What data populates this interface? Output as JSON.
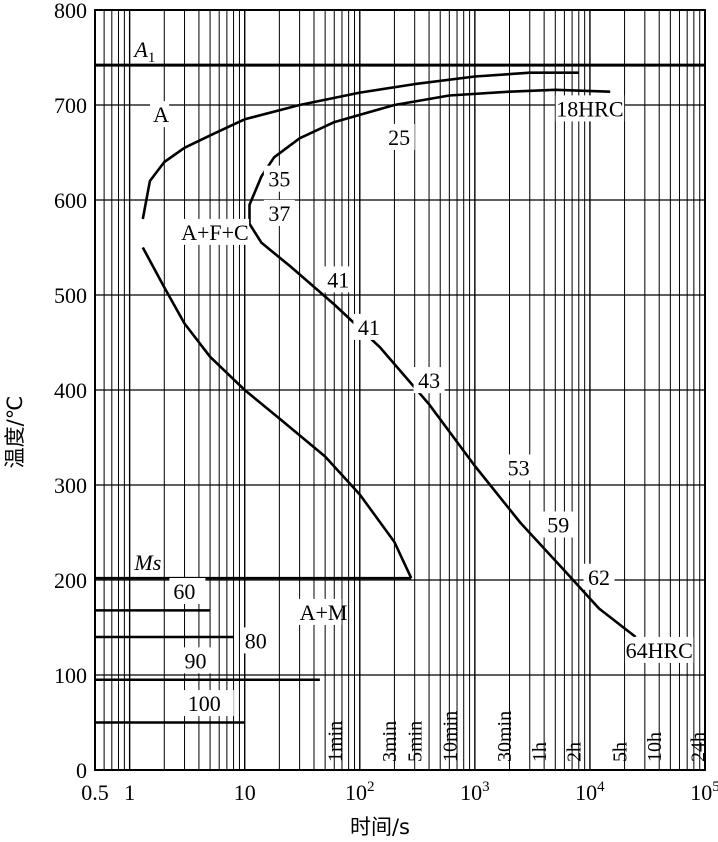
{
  "chart_data": {
    "type": "line",
    "title": "",
    "xlabel": "时间/s",
    "ylabel": "温度/℃",
    "x_scale": "log",
    "xlim": [
      0.5,
      100000
    ],
    "ylim": [
      0,
      800
    ],
    "grid": true,
    "y_ticks": [
      0,
      100,
      200,
      300,
      400,
      500,
      600,
      700,
      800
    ],
    "x_ticks": [
      {
        "value": 0.5,
        "label": "0.5"
      },
      {
        "value": 1,
        "label": "1"
      },
      {
        "value": 10,
        "label": "10"
      },
      {
        "value": 100,
        "label": "10",
        "exp": "2"
      },
      {
        "value": 1000,
        "label": "10",
        "exp": "3"
      },
      {
        "value": 10000,
        "label": "10",
        "exp": "4"
      },
      {
        "value": 100000,
        "label": "10",
        "exp": "5"
      }
    ],
    "time_marks": [
      {
        "value": 60,
        "label": "1min"
      },
      {
        "value": 180,
        "label": "3min"
      },
      {
        "value": 300,
        "label": "5min"
      },
      {
        "value": 600,
        "label": "10min"
      },
      {
        "value": 1800,
        "label": "30min"
      },
      {
        "value": 3600,
        "label": "1h"
      },
      {
        "value": 7200,
        "label": "2h"
      },
      {
        "value": 18000,
        "label": "5h"
      },
      {
        "value": 36000,
        "label": "10h"
      },
      {
        "value": 86400,
        "label": "24h"
      }
    ],
    "a1": {
      "label": "A",
      "sub": "1",
      "y": 742
    },
    "ms": {
      "label": "Ms",
      "y": 202,
      "x_end": 280
    },
    "curves": [
      {
        "id": "ferrite-pearlite-start",
        "points": [
          [
            1.3,
            580
          ],
          [
            1.5,
            620
          ],
          [
            2,
            640
          ],
          [
            3,
            655
          ],
          [
            5,
            668
          ],
          [
            10,
            685
          ],
          [
            30,
            700
          ],
          [
            100,
            713
          ],
          [
            300,
            722
          ],
          [
            1000,
            730
          ],
          [
            3000,
            734
          ],
          [
            8000,
            734
          ]
        ]
      },
      {
        "id": "pearlite-finish",
        "points": [
          [
            15000,
            714
          ],
          [
            5000,
            716
          ],
          [
            2000,
            714
          ],
          [
            600,
            710
          ],
          [
            200,
            700
          ],
          [
            60,
            682
          ],
          [
            30,
            665
          ],
          [
            18,
            645
          ],
          [
            14,
            625
          ],
          [
            11,
            595
          ],
          [
            11,
            575
          ],
          [
            14,
            555
          ],
          [
            25,
            530
          ],
          [
            60,
            490
          ],
          [
            150,
            445
          ],
          [
            400,
            385
          ],
          [
            1000,
            320
          ],
          [
            2500,
            260
          ],
          [
            6000,
            210
          ],
          [
            12000,
            170
          ],
          [
            25000,
            140
          ]
        ]
      },
      {
        "id": "bainite-start",
        "points": [
          [
            1.3,
            550
          ],
          [
            2,
            508
          ],
          [
            3,
            470
          ],
          [
            5,
            435
          ],
          [
            10,
            400
          ],
          [
            20,
            370
          ],
          [
            50,
            330
          ],
          [
            100,
            290
          ],
          [
            200,
            240
          ],
          [
            280,
            202
          ]
        ]
      }
    ],
    "region_labels": [
      {
        "text": "A",
        "x": 1.6,
        "y": 682
      },
      {
        "text": "A+F+C",
        "x": 2.8,
        "y": 558
      },
      {
        "text": "A+M",
        "x": 30,
        "y": 158
      }
    ],
    "hardness_labels": [
      {
        "text": "18HRC",
        "x": 10000,
        "y": 688
      },
      {
        "text": "25",
        "x": 220,
        "y": 658
      },
      {
        "text": "35",
        "x": 20,
        "y": 614
      },
      {
        "text": "37",
        "x": 20,
        "y": 578
      },
      {
        "text": "41",
        "x": 65,
        "y": 508
      },
      {
        "text": "41",
        "x": 120,
        "y": 458
      },
      {
        "text": "43",
        "x": 400,
        "y": 402
      },
      {
        "text": "53",
        "x": 2400,
        "y": 310
      },
      {
        "text": "59",
        "x": 5300,
        "y": 250
      },
      {
        "text": "62",
        "x": 12000,
        "y": 195
      },
      {
        "text": "64HRC",
        "x": 40000,
        "y": 118
      }
    ],
    "quench_lines": [
      {
        "label": "60",
        "y": 168,
        "x_end": 5,
        "label_x": 2.4,
        "label_y": 180
      },
      {
        "label": "80",
        "y": 140,
        "x_end": 8,
        "label_x": 10,
        "label_y": 128
      },
      {
        "label": "90",
        "y": 95,
        "x_end": 45,
        "label_x": 3,
        "label_y": 107
      },
      {
        "label": "100",
        "y": 50,
        "x_end": 10,
        "label_x": 3.2,
        "label_y": 62
      }
    ]
  }
}
